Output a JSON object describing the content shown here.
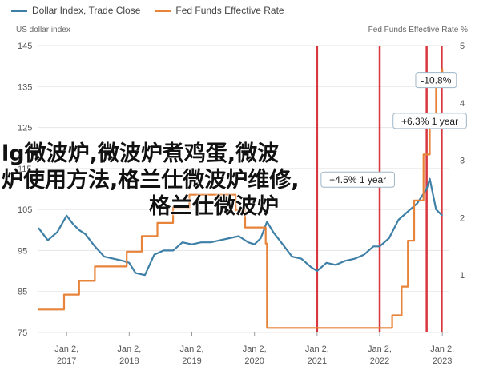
{
  "legend": [
    {
      "label": "Dollar Index, Trade Close",
      "color": "#3d7fa6"
    },
    {
      "label": "Fed Funds Effective Rate",
      "color": "#e8843a"
    }
  ],
  "left_axis_title": "US dollar index",
  "right_axis_title": "Fed Funds Effective Rate %",
  "overlay_lines": [
    "lg微波炉,微波炉煮鸡蛋,微波",
    "炉使用方法,格兰仕微波炉维修,",
    "格兰仕微波炉"
  ],
  "chart_data": {
    "type": "line",
    "x_ticks": [
      {
        "label": "Jan 2,",
        "year": "2017",
        "t": 2017.0
      },
      {
        "label": "Jan 2,",
        "year": "2018",
        "t": 2018.0
      },
      {
        "label": "Jan 2,",
        "year": "2019",
        "t": 2019.0
      },
      {
        "label": "Jan 2,",
        "year": "2020",
        "t": 2020.0
      },
      {
        "label": "Jan 2,",
        "year": "2021",
        "t": 2021.0
      },
      {
        "label": "Jan 2,",
        "year": "2022",
        "t": 2022.0
      },
      {
        "label": "Jan 2,",
        "year": "2023",
        "t": 2023.0
      }
    ],
    "xlim": [
      2016.55,
      2023.1
    ],
    "left_axis": {
      "label": "US dollar index",
      "ylim": [
        75,
        145
      ],
      "ticks": [
        75,
        85,
        95,
        105,
        115,
        125,
        135,
        145
      ]
    },
    "right_axis": {
      "label": "Fed Funds Effective Rate %",
      "ylim": [
        0,
        5
      ],
      "ticks": [
        1,
        2,
        3,
        4,
        5
      ]
    },
    "vertical_markers": [
      2021.0,
      2022.0,
      2022.75,
      2022.99
    ],
    "annotations": [
      {
        "text": "-10.8%",
        "t": 2022.9,
        "y": 136.5
      },
      {
        "text": "+6.3% 1 year",
        "t": 2022.8,
        "y": 126.5
      },
      {
        "text": "+4.5% 1 year",
        "t": 2021.65,
        "y": 112.2
      }
    ],
    "series": [
      {
        "name": "Dollar Index, Trade Close",
        "color": "#3d7fa6",
        "axis": "left",
        "x": [
          2016.55,
          2016.7,
          2016.85,
          2017.0,
          2017.1,
          2017.2,
          2017.3,
          2017.45,
          2017.6,
          2017.75,
          2017.9,
          2018.0,
          2018.1,
          2018.25,
          2018.4,
          2018.55,
          2018.7,
          2018.85,
          2019.0,
          2019.15,
          2019.3,
          2019.45,
          2019.6,
          2019.75,
          2019.9,
          2020.0,
          2020.1,
          2020.2,
          2020.3,
          2020.45,
          2020.6,
          2020.75,
          2020.9,
          2021.0,
          2021.15,
          2021.3,
          2021.45,
          2021.6,
          2021.75,
          2021.9,
          2022.0,
          2022.15,
          2022.3,
          2022.45,
          2022.6,
          2022.75,
          2022.8,
          2022.9,
          2023.0
        ],
        "y": [
          100.5,
          97.5,
          99.5,
          103.5,
          101.5,
          100.0,
          99.0,
          96.0,
          93.5,
          93.0,
          92.5,
          92.0,
          89.5,
          89.0,
          94.0,
          95.0,
          95.0,
          97.0,
          96.5,
          97.0,
          97.0,
          97.5,
          98.0,
          98.5,
          97.0,
          96.5,
          98.0,
          102.0,
          99.5,
          96.5,
          93.5,
          93.0,
          91.0,
          90.0,
          92.0,
          91.5,
          92.5,
          93.0,
          94.0,
          96.0,
          96.0,
          98.0,
          102.5,
          104.5,
          106.5,
          110.0,
          112.5,
          105.0,
          103.5
        ]
      },
      {
        "name": "Fed Funds Effective Rate",
        "color": "#e8843a",
        "axis": "right",
        "x": [
          2016.55,
          2016.85,
          2016.96,
          2017.2,
          2017.45,
          2017.96,
          2018.2,
          2018.45,
          2018.7,
          2018.96,
          2019.55,
          2019.7,
          2019.85,
          2020.18,
          2020.2,
          2021.0,
          2021.5,
          2022.2,
          2022.35,
          2022.45,
          2022.55,
          2022.7,
          2022.8,
          2022.9,
          2023.0
        ],
        "y": [
          0.4,
          0.4,
          0.66,
          0.9,
          1.15,
          1.41,
          1.68,
          1.91,
          2.18,
          2.4,
          2.4,
          2.13,
          1.83,
          1.55,
          0.08,
          0.08,
          0.08,
          0.3,
          0.8,
          1.6,
          2.3,
          3.1,
          3.8,
          4.3,
          4.6
        ]
      }
    ]
  }
}
